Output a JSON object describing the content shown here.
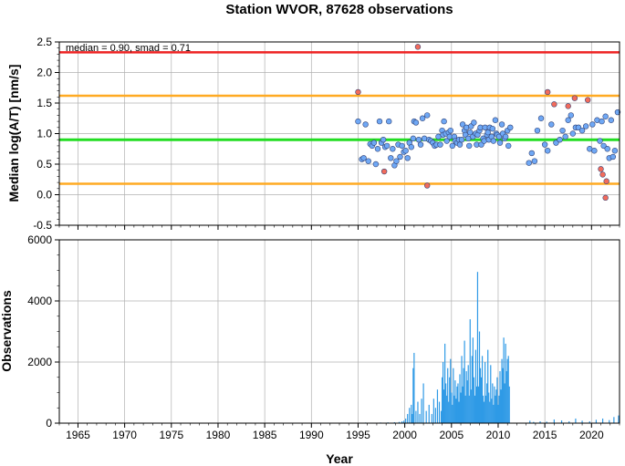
{
  "chart_data": [
    {
      "type": "scatter",
      "title": "Station WVOR, 87628 observations",
      "ylabel": "Median log(A/T) [nm/s]",
      "annotation": "median = 0.90, smad = 0.71",
      "xlim": [
        1963,
        2023
      ],
      "ylim": [
        -0.5,
        2.5
      ],
      "yticks": [
        "-0.5",
        "0.0",
        "0.5",
        "1.0",
        "1.5",
        "2.0",
        "2.5"
      ],
      "grid": true,
      "reference_lines": {
        "median": 0.9,
        "lower": 0.18,
        "upper": 1.62,
        "max": 2.33
      },
      "colors": {
        "median": "#22dd22",
        "bounds": "#ffaa22",
        "max": "#ee2222",
        "point_normal": "#6fa8f5",
        "point_outlier": "#f26b5b",
        "point_edge": "#334477"
      },
      "series": [
        {
          "points": [
            [
              1995.0,
              1.2
            ],
            [
              1995.4,
              0.58
            ],
            [
              1995.6,
              0.6
            ],
            [
              1995.8,
              1.15
            ],
            [
              1996.1,
              0.55
            ],
            [
              1996.3,
              0.83
            ],
            [
              1996.5,
              0.8
            ],
            [
              1996.7,
              0.85
            ],
            [
              1996.9,
              0.5
            ],
            [
              1997.1,
              0.75
            ],
            [
              1997.3,
              1.2
            ],
            [
              1997.5,
              0.85
            ],
            [
              1997.7,
              0.9
            ],
            [
              1997.9,
              0.78
            ],
            [
              1998.1,
              0.8
            ],
            [
              1998.3,
              1.2
            ],
            [
              1998.5,
              0.6
            ],
            [
              1998.7,
              0.75
            ],
            [
              1998.9,
              0.48
            ],
            [
              1999.1,
              0.55
            ],
            [
              1999.3,
              0.82
            ],
            [
              1999.5,
              0.62
            ],
            [
              1999.7,
              0.8
            ],
            [
              1999.9,
              0.7
            ],
            [
              2000.1,
              0.72
            ],
            [
              2000.3,
              0.6
            ],
            [
              2000.5,
              0.85
            ],
            [
              2000.7,
              0.78
            ],
            [
              2000.9,
              0.92
            ],
            [
              2001.0,
              1.2
            ],
            [
              2001.2,
              1.18
            ],
            [
              2001.5,
              0.9
            ],
            [
              2001.7,
              0.82
            ],
            [
              2001.9,
              1.25
            ],
            [
              2002.1,
              0.92
            ],
            [
              2002.4,
              1.3
            ],
            [
              2002.6,
              0.9
            ],
            [
              2002.8,
              0.88
            ],
            [
              2003.0,
              0.85
            ],
            [
              2003.2,
              0.8
            ],
            [
              2003.4,
              0.82
            ],
            [
              2003.6,
              0.95
            ],
            [
              2003.8,
              0.82
            ],
            [
              2004.0,
              1.05
            ],
            [
              2004.1,
              0.98
            ],
            [
              2004.2,
              1.2
            ],
            [
              2004.4,
              1.0
            ],
            [
              2004.5,
              0.88
            ],
            [
              2004.7,
              1.02
            ],
            [
              2004.8,
              0.95
            ],
            [
              2004.9,
              1.05
            ],
            [
              2005.1,
              0.8
            ],
            [
              2005.3,
              0.95
            ],
            [
              2005.4,
              0.88
            ],
            [
              2005.6,
              0.85
            ],
            [
              2005.8,
              0.9
            ],
            [
              2005.9,
              0.82
            ],
            [
              2006.1,
              0.9
            ],
            [
              2006.2,
              1.15
            ],
            [
              2006.4,
              1.05
            ],
            [
              2006.5,
              0.98
            ],
            [
              2006.6,
              1.1
            ],
            [
              2006.8,
              0.92
            ],
            [
              2006.9,
              0.8
            ],
            [
              2007.0,
              1.02
            ],
            [
              2007.1,
              1.12
            ],
            [
              2007.3,
              0.95
            ],
            [
              2007.4,
              1.18
            ],
            [
              2007.6,
              1.0
            ],
            [
              2007.7,
              0.82
            ],
            [
              2007.8,
              0.98
            ],
            [
              2008.0,
              1.05
            ],
            [
              2008.1,
              1.1
            ],
            [
              2008.2,
              0.82
            ],
            [
              2008.4,
              0.92
            ],
            [
              2008.5,
              0.88
            ],
            [
              2008.6,
              1.1
            ],
            [
              2008.8,
              0.98
            ],
            [
              2008.9,
              1.02
            ],
            [
              2009.0,
              0.9
            ],
            [
              2009.1,
              1.1
            ],
            [
              2009.3,
              0.95
            ],
            [
              2009.4,
              1.08
            ],
            [
              2009.5,
              0.88
            ],
            [
              2009.7,
              1.22
            ],
            [
              2009.8,
              1.0
            ],
            [
              2009.9,
              0.98
            ],
            [
              2010.1,
              0.95
            ],
            [
              2010.2,
              0.85
            ],
            [
              2010.4,
              1.15
            ],
            [
              2010.5,
              1.0
            ],
            [
              2010.7,
              0.92
            ],
            [
              2010.8,
              0.95
            ],
            [
              2011.0,
              1.05
            ],
            [
              2011.1,
              0.8
            ],
            [
              2011.3,
              1.1
            ],
            [
              2013.3,
              0.52
            ],
            [
              2013.6,
              0.68
            ],
            [
              2013.9,
              0.55
            ],
            [
              2014.2,
              1.05
            ],
            [
              2014.6,
              1.25
            ],
            [
              2015.0,
              0.82
            ],
            [
              2015.3,
              0.72
            ],
            [
              2015.7,
              1.15
            ],
            [
              2016.2,
              0.85
            ],
            [
              2016.6,
              0.9
            ],
            [
              2016.9,
              1.05
            ],
            [
              2017.2,
              0.95
            ],
            [
              2017.5,
              1.22
            ],
            [
              2017.8,
              1.3
            ],
            [
              2018.0,
              1.0
            ],
            [
              2018.3,
              1.1
            ],
            [
              2018.6,
              1.1
            ],
            [
              2019.0,
              1.05
            ],
            [
              2019.4,
              1.12
            ],
            [
              2019.8,
              0.75
            ],
            [
              2020.1,
              1.15
            ],
            [
              2020.3,
              0.72
            ],
            [
              2020.6,
              1.22
            ],
            [
              2020.9,
              0.88
            ],
            [
              2021.1,
              1.2
            ],
            [
              2021.3,
              0.8
            ],
            [
              2021.5,
              1.28
            ],
            [
              2021.7,
              0.75
            ],
            [
              2021.9,
              0.6
            ],
            [
              2022.1,
              1.22
            ],
            [
              2022.3,
              0.62
            ],
            [
              2022.5,
              0.72
            ],
            [
              2022.8,
              1.35
            ]
          ]
        },
        {
          "outliers": true,
          "points": [
            [
              1995.0,
              1.68
            ],
            [
              1997.8,
              0.38
            ],
            [
              2001.4,
              2.42
            ],
            [
              2002.4,
              0.15
            ],
            [
              2015.3,
              1.68
            ],
            [
              2016.0,
              1.48
            ],
            [
              2017.5,
              1.45
            ],
            [
              2018.2,
              1.58
            ],
            [
              2019.6,
              1.55
            ],
            [
              2021.0,
              0.42
            ],
            [
              2021.2,
              0.33
            ],
            [
              2021.5,
              -0.05
            ],
            [
              2021.6,
              0.22
            ]
          ]
        }
      ]
    },
    {
      "type": "bar",
      "xlabel": "Year",
      "ylabel": "Observations",
      "xlim": [
        1963,
        2023
      ],
      "ylim": [
        0,
        6000
      ],
      "yticks": [
        "0",
        "2000",
        "4000",
        "6000"
      ],
      "xticks": [
        "1965",
        "1970",
        "1975",
        "1980",
        "1985",
        "1990",
        "1995",
        "2000",
        "2005",
        "2010",
        "2015",
        "2020"
      ],
      "grid": true,
      "colors": {
        "bar": "#2f9ae6",
        "accent": "#ee2222"
      },
      "x": [
        1995.2,
        1995.8,
        1996.6,
        1997.4,
        1998.2,
        1998.9,
        1999.4,
        1999.7,
        1999.9,
        2000.1,
        2000.3,
        2000.5,
        2000.7,
        2000.8,
        2000.9,
        2001.0,
        2001.2,
        2001.4,
        2001.6,
        2001.8,
        2002.0,
        2002.3,
        2002.6,
        2002.9,
        2003.1,
        2003.3,
        2003.5,
        2003.7,
        2003.9,
        2004.0,
        2004.1,
        2004.2,
        2004.3,
        2004.4,
        2004.5,
        2004.6,
        2004.7,
        2004.8,
        2004.9,
        2005.0,
        2005.1,
        2005.2,
        2005.3,
        2005.4,
        2005.5,
        2005.6,
        2005.7,
        2005.8,
        2005.9,
        2006.0,
        2006.1,
        2006.2,
        2006.3,
        2006.4,
        2006.5,
        2006.6,
        2006.7,
        2006.8,
        2006.9,
        2007.0,
        2007.1,
        2007.2,
        2007.3,
        2007.4,
        2007.5,
        2007.6,
        2007.7,
        2007.8,
        2007.9,
        2008.0,
        2008.1,
        2008.2,
        2008.3,
        2008.4,
        2008.5,
        2008.6,
        2008.7,
        2008.8,
        2008.9,
        2009.0,
        2009.1,
        2009.2,
        2009.3,
        2009.4,
        2009.5,
        2009.6,
        2009.7,
        2009.8,
        2009.9,
        2010.0,
        2010.1,
        2010.2,
        2010.3,
        2010.4,
        2010.5,
        2010.6,
        2010.7,
        2010.8,
        2010.9,
        2011.0,
        2011.1,
        2011.2,
        2013.4,
        2013.8,
        2014.5,
        2015.2,
        2016.0,
        2016.8,
        2017.6,
        2018.3,
        2019.0,
        2019.8,
        2020.5,
        2021.2,
        2021.9,
        2022.4,
        2022.9
      ],
      "values": [
        10,
        20,
        15,
        20,
        25,
        30,
        40,
        60,
        80,
        150,
        300,
        500,
        600,
        300,
        1800,
        2300,
        400,
        700,
        300,
        800,
        1300,
        400,
        600,
        300,
        800,
        500,
        1100,
        700,
        400,
        1500,
        2000,
        1100,
        2600,
        1300,
        900,
        1800,
        700,
        1500,
        2100,
        1000,
        600,
        1800,
        900,
        1400,
        800,
        1200,
        1300,
        700,
        1600,
        1000,
        2200,
        1200,
        1800,
        2700,
        900,
        1700,
        1400,
        1900,
        900,
        3400,
        1100,
        2200,
        2800,
        1500,
        900,
        2400,
        1200,
        4950,
        1200,
        3000,
        1800,
        1500,
        2200,
        900,
        700,
        2000,
        900,
        1300,
        2400,
        1000,
        700,
        1900,
        800,
        1300,
        600,
        1200,
        900,
        1100,
        1500,
        600,
        900,
        1700,
        1100,
        2100,
        1800,
        2800,
        1300,
        2600,
        1700,
        2100,
        2200,
        1200,
        80,
        40,
        60,
        50,
        120,
        90,
        60,
        150,
        80,
        60,
        110,
        150,
        100,
        200,
        250
      ]
    }
  ]
}
